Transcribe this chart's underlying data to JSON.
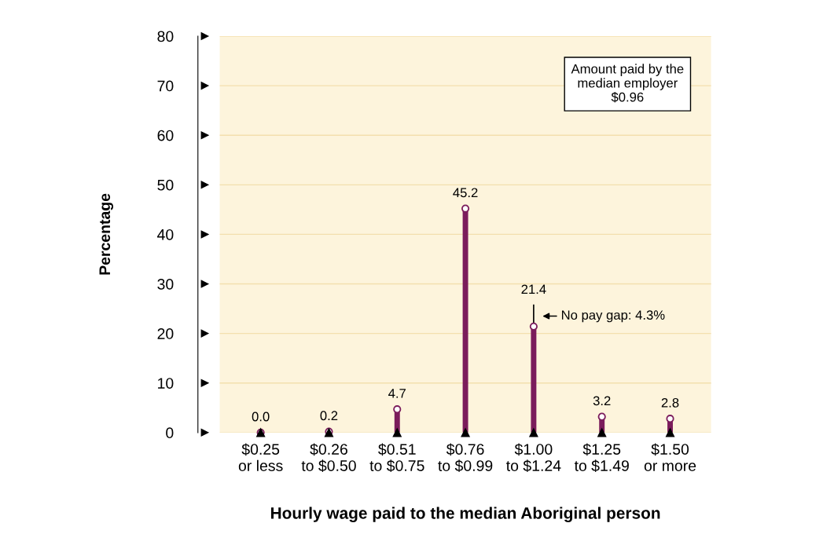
{
  "chart_data": {
    "type": "lollipop",
    "xlabel": "Hourly wage paid to the median Aboriginal person",
    "ylabel": "Percentage",
    "categories": [
      "$0.25\nor less",
      "$0.26\nto $0.50",
      "$0.51\nto $0.75",
      "$0.76\nto $0.99",
      "$1.00\nto $1.24",
      "$1.25\nto $1.49",
      "$1.50\nor more"
    ],
    "values": [
      0.0,
      0.2,
      4.7,
      45.2,
      21.4,
      3.2,
      2.8
    ],
    "errors": [
      null,
      null,
      null,
      null,
      [
        21.4,
        25.7
      ],
      null,
      null
    ],
    "color": "#7b1c5c",
    "marker": "circle",
    "value_labels": [
      "0.0",
      "0.2",
      "4.7",
      "45.2",
      "21.4",
      "3.2",
      "2.8"
    ],
    "ylim": [
      0,
      80
    ],
    "yticks": [
      0,
      10,
      20,
      30,
      40,
      50,
      60,
      70,
      80
    ],
    "grid": "y",
    "annotations": [
      "Amount paid by the\nmedian employer\n$0.96",
      {
        "text": "No pay gap: 4.3%",
        "x": "$1.00\nto $1.24",
        "y": 23.5
      }
    ]
  }
}
